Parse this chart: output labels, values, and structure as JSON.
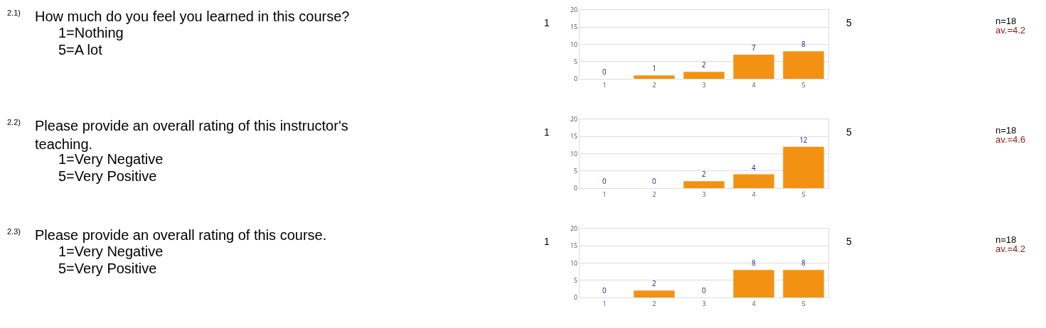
{
  "chart_data": [
    {
      "type": "bar",
      "annotations": [
        "2.1)",
        "How much do you feel you learned in this course?",
        "1=Nothing",
        "5=A lot",
        "1",
        "5",
        "n=18",
        "av.=4.2"
      ],
      "categories": [
        "1",
        "2",
        "3",
        "4",
        "5"
      ],
      "values": [
        0,
        1,
        2,
        7,
        8
      ],
      "color": "#f39212",
      "ylim": [
        0,
        20
      ],
      "yticks": [
        0,
        5,
        10,
        15,
        20
      ],
      "grid": "y",
      "data_labels": true,
      "legend": false
    },
    {
      "type": "bar",
      "annotations": [
        "2.2)",
        "Please provide an overall rating of this instructor's teaching.",
        "1=Very Negative",
        "5=Very Positive",
        "1",
        "5",
        "n=18",
        "av.=4.6"
      ],
      "categories": [
        "1",
        "2",
        "3",
        "4",
        "5"
      ],
      "values": [
        0,
        0,
        2,
        4,
        12
      ],
      "color": "#f39212",
      "ylim": [
        0,
        20
      ],
      "yticks": [
        0,
        5,
        10,
        15,
        20
      ],
      "grid": "y",
      "data_labels": true,
      "legend": false
    },
    {
      "type": "bar",
      "annotations": [
        "2.3)",
        "Please provide an overall rating of this course.",
        "1=Very Negative",
        "5=Very Positive",
        "1",
        "5",
        "n=18",
        "av.=4.2"
      ],
      "categories": [
        "1",
        "2",
        "3",
        "4",
        "5"
      ],
      "values": [
        0,
        2,
        0,
        8,
        8
      ],
      "color": "#f39212",
      "ylim": [
        0,
        20
      ],
      "yticks": [
        0,
        5,
        10,
        15,
        20
      ],
      "grid": "y",
      "data_labels": true,
      "legend": false
    }
  ]
}
